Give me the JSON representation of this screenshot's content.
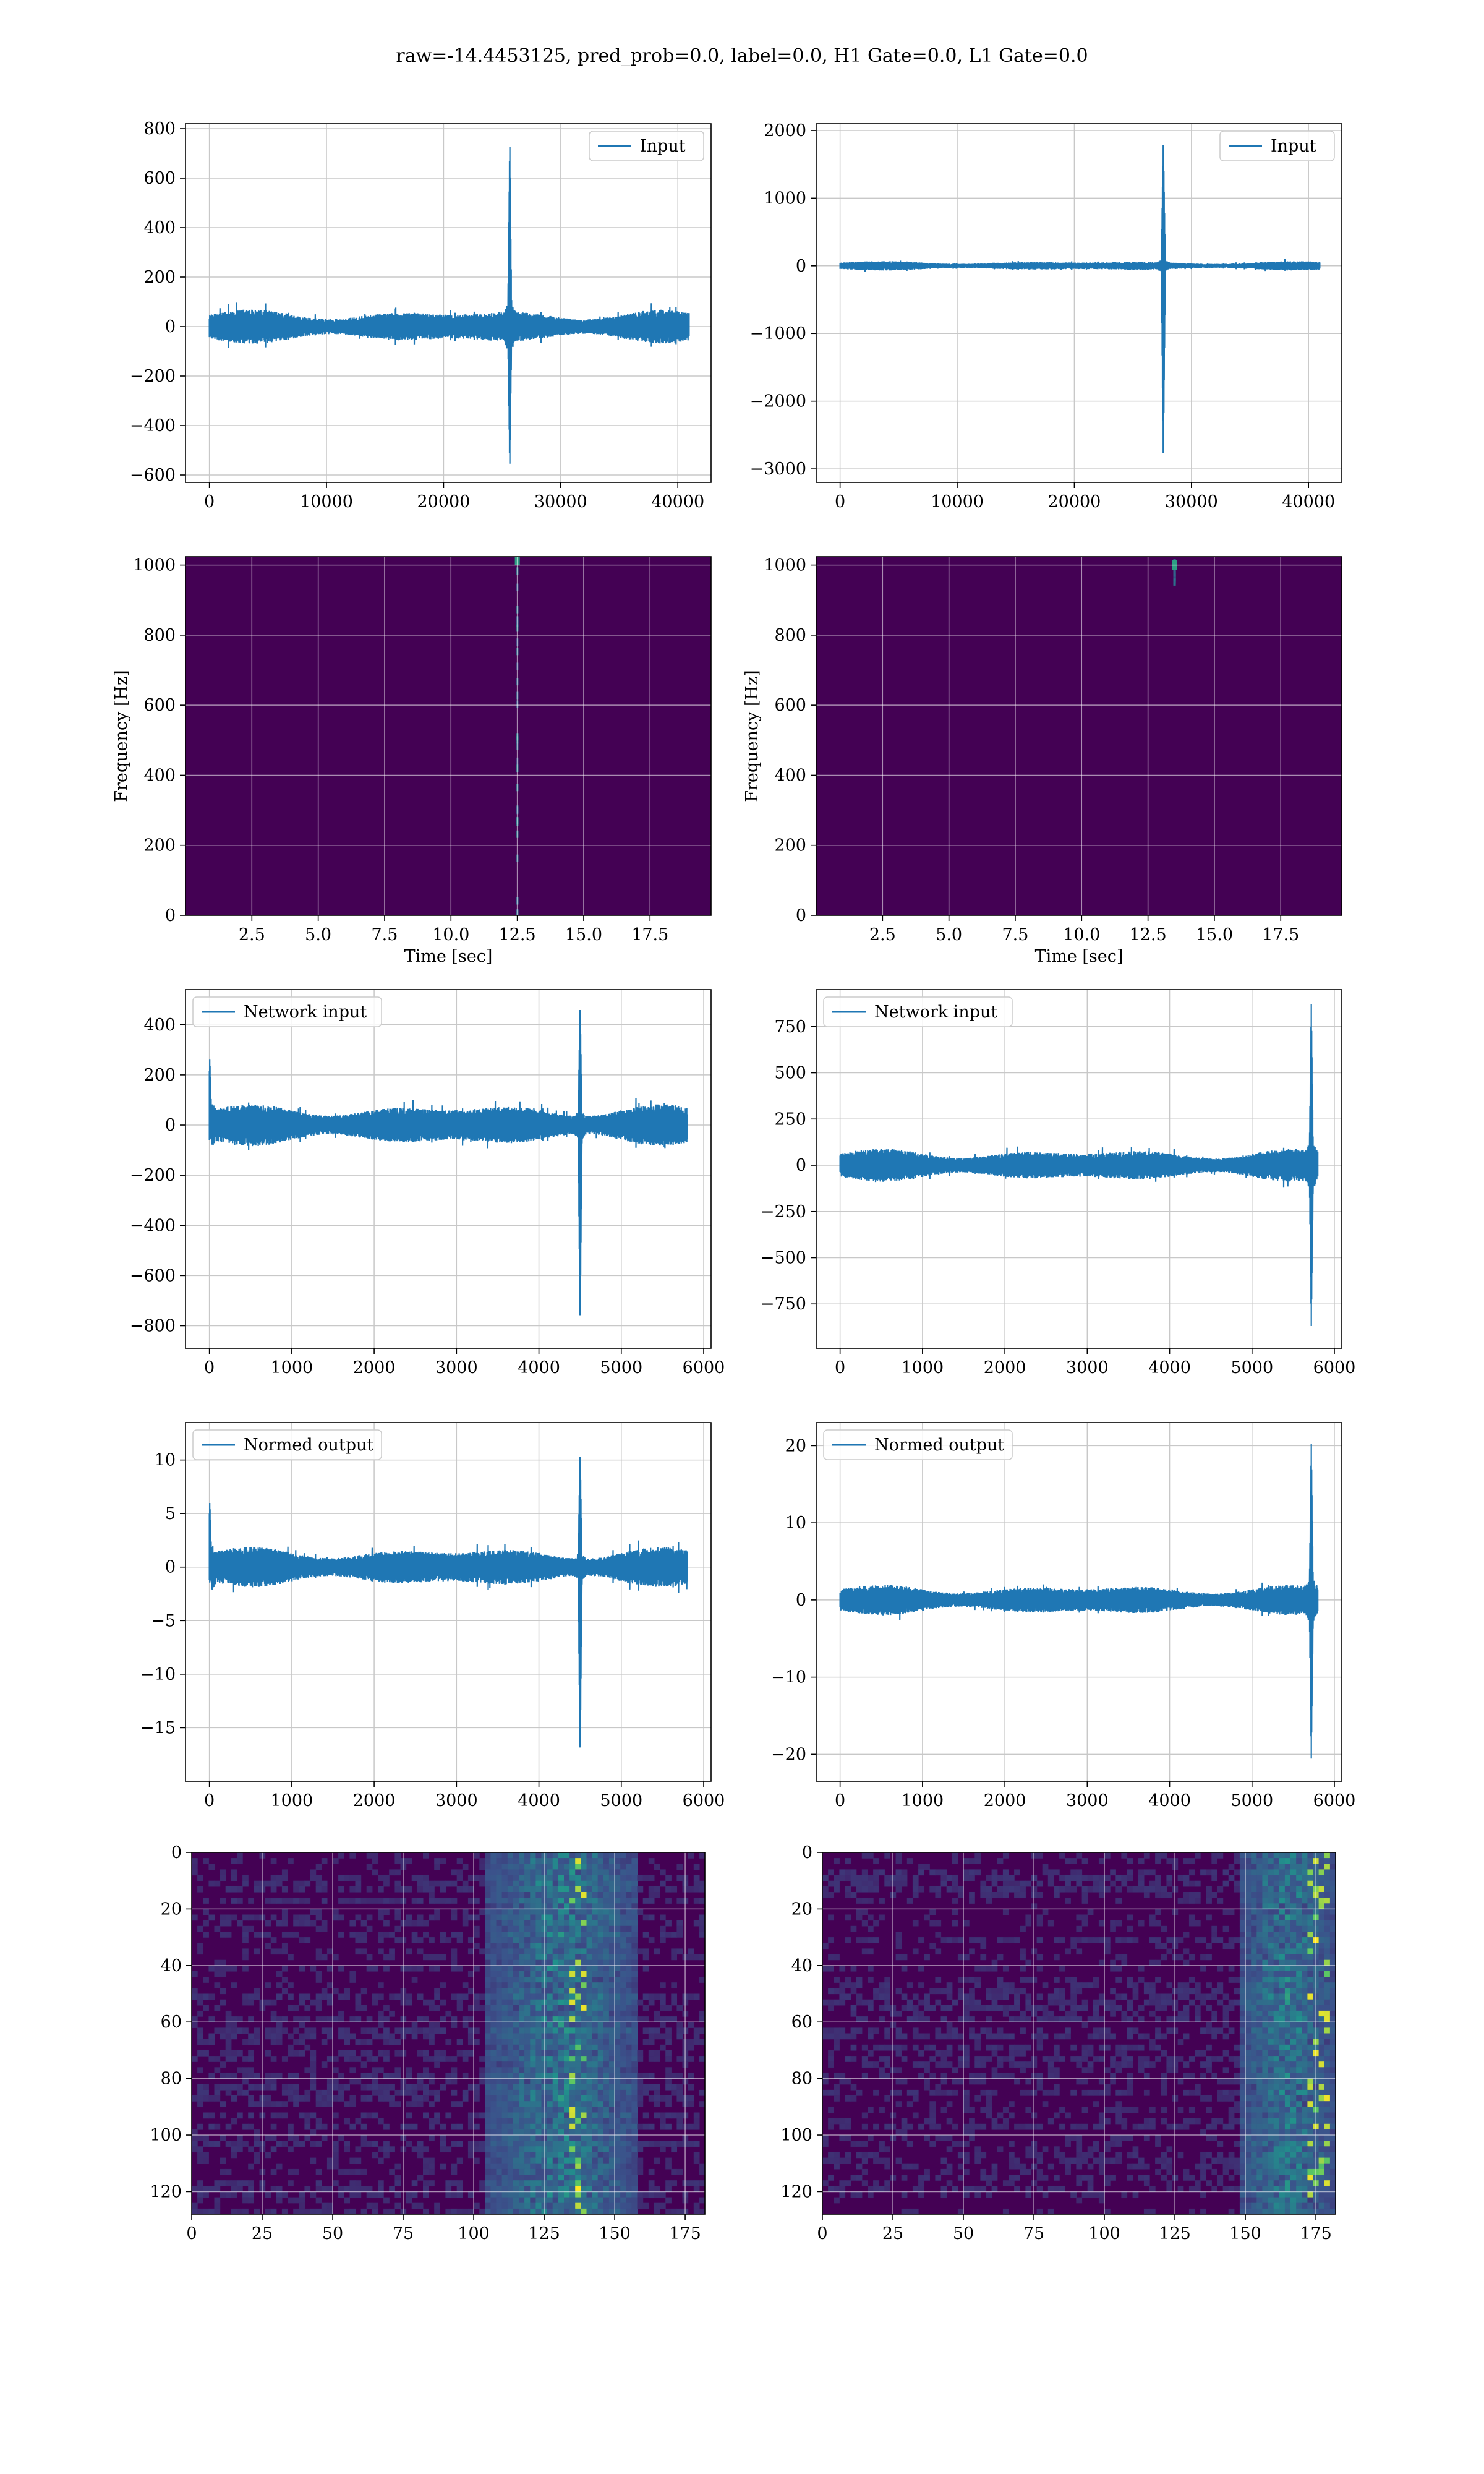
{
  "figure": {
    "suptitle": "raw=-14.4453125, pred_prob=0.0, label=0.0, H1 Gate=0.0, L1 Gate=0.0"
  },
  "colors": {
    "series": "#1f77b4",
    "grid": "#c8c8c8",
    "spectrogram_bg": "#440154",
    "viridis_low": "#440154",
    "viridis_mid": "#31688e",
    "viridis_high": "#35b779",
    "viridis_top": "#fde725"
  },
  "chart_data": [
    {
      "id": "input_left",
      "type": "line",
      "legend": "Input",
      "legend_loc": "upper right",
      "xlim": [
        -2040,
        42840
      ],
      "ylim": [
        -630,
        820
      ],
      "xticks": [
        0,
        10000,
        20000,
        30000,
        40000
      ],
      "yticks": [
        -600,
        -400,
        -200,
        0,
        200,
        400,
        600,
        800
      ],
      "xlabel": "",
      "ylabel": "",
      "series": {
        "n": 40960,
        "noise_amplitude": 70,
        "events": [
          {
            "x": 25650,
            "peak": 760,
            "trough": -580
          }
        ]
      }
    },
    {
      "id": "input_right",
      "type": "line",
      "legend": "Input",
      "legend_loc": "upper right",
      "xlim": [
        -2040,
        42840
      ],
      "ylim": [
        -3200,
        2100
      ],
      "xticks": [
        0,
        10000,
        20000,
        30000,
        40000
      ],
      "yticks": [
        -3000,
        -2000,
        -1000,
        0,
        1000,
        2000
      ],
      "xlabel": "",
      "ylabel": "",
      "series": {
        "n": 40960,
        "noise_amplitude": 70,
        "events": [
          {
            "x": 27600,
            "peak": 1900,
            "trough": -2950
          }
        ]
      }
    },
    {
      "id": "spectrogram_left",
      "type": "heatmap",
      "xlim": [
        0,
        19.8
      ],
      "ylim": [
        0,
        1024
      ],
      "xticks": [
        2.5,
        5.0,
        7.5,
        10.0,
        12.5,
        15.0,
        17.5
      ],
      "xtick_labels": [
        "2.5",
        "5.0",
        "7.5",
        "10.0",
        "12.5",
        "15.0",
        "17.5"
      ],
      "yticks": [
        0,
        200,
        400,
        600,
        800,
        1000
      ],
      "xlabel": "Time [sec]",
      "ylabel": "Frequency [Hz]",
      "features": [
        {
          "t": 12.5,
          "f_min": 0,
          "f_max": 1024
        }
      ]
    },
    {
      "id": "spectrogram_right",
      "type": "heatmap",
      "xlim": [
        0,
        19.8
      ],
      "ylim": [
        0,
        1024
      ],
      "xticks": [
        2.5,
        5.0,
        7.5,
        10.0,
        12.5,
        15.0,
        17.5
      ],
      "xtick_labels": [
        "2.5",
        "5.0",
        "7.5",
        "10.0",
        "12.5",
        "15.0",
        "17.5"
      ],
      "yticks": [
        0,
        200,
        400,
        600,
        800,
        1000
      ],
      "xlabel": "Time [sec]",
      "ylabel": "Frequency [Hz]",
      "features": [
        {
          "t": 13.5,
          "f_min": 950,
          "f_max": 1010
        }
      ]
    },
    {
      "id": "network_left",
      "type": "line",
      "legend": "Network input",
      "legend_loc": "upper left",
      "xlim": [
        -290,
        6090
      ],
      "ylim": [
        -890,
        540
      ],
      "xticks": [
        0,
        1000,
        2000,
        3000,
        4000,
        5000,
        6000
      ],
      "yticks": [
        -800,
        -600,
        -400,
        -200,
        0,
        200,
        400
      ],
      "xlabel": "",
      "ylabel": "",
      "series": {
        "n": 5800,
        "noise_amplitude": 85,
        "events": [
          {
            "x": 4500,
            "peak": 490,
            "trough": -810
          },
          {
            "x": 5,
            "peak": 270,
            "trough": -60
          }
        ]
      }
    },
    {
      "id": "network_right",
      "type": "line",
      "legend": "Network input",
      "legend_loc": "upper left",
      "xlim": [
        -290,
        6090
      ],
      "ylim": [
        -990,
        950
      ],
      "xticks": [
        0,
        1000,
        2000,
        3000,
        4000,
        5000,
        6000
      ],
      "yticks": [
        -750,
        -500,
        -250,
        0,
        250,
        500,
        750
      ],
      "xlabel": "",
      "ylabel": "",
      "series": {
        "n": 5800,
        "noise_amplitude": 90,
        "events": [
          {
            "x": 5720,
            "peak": 880,
            "trough": -880
          }
        ]
      }
    },
    {
      "id": "normed_left",
      "type": "line",
      "legend": "Normed output",
      "legend_loc": "upper left",
      "xlim": [
        -290,
        6090
      ],
      "ylim": [
        -20,
        13.5
      ],
      "xticks": [
        0,
        1000,
        2000,
        3000,
        4000,
        5000,
        6000
      ],
      "yticks": [
        -15,
        -10,
        -5,
        0,
        5,
        10
      ],
      "xlabel": "",
      "ylabel": "",
      "series": {
        "n": 5800,
        "noise_amplitude": 1.9,
        "events": [
          {
            "x": 4500,
            "peak": 11,
            "trough": -18
          },
          {
            "x": 5,
            "peak": 6.2,
            "trough": -1.5
          }
        ]
      }
    },
    {
      "id": "normed_right",
      "type": "line",
      "legend": "Normed output",
      "legend_loc": "upper left",
      "xlim": [
        -290,
        6090
      ],
      "ylim": [
        -23.5,
        23
      ],
      "xticks": [
        0,
        1000,
        2000,
        3000,
        4000,
        5000,
        6000
      ],
      "yticks": [
        -20,
        -10,
        0,
        10,
        20
      ],
      "xlabel": "",
      "ylabel": "",
      "series": {
        "n": 5800,
        "noise_amplitude": 2.0,
        "events": [
          {
            "x": 5720,
            "peak": 20.5,
            "trough": -20.8
          }
        ]
      }
    },
    {
      "id": "qtransform_left",
      "type": "heatmap",
      "xlim": [
        0,
        182
      ],
      "ylim": [
        128,
        0
      ],
      "xticks": [
        0,
        25,
        50,
        75,
        100,
        125,
        150,
        175
      ],
      "yticks": [
        0,
        20,
        40,
        60,
        80,
        100,
        120
      ],
      "xlabel": "",
      "ylabel": "",
      "features": [
        {
          "x_from": 105,
          "x_to": 158,
          "hot_x": 137
        }
      ]
    },
    {
      "id": "qtransform_right",
      "type": "heatmap",
      "xlim": [
        0,
        182
      ],
      "ylim": [
        128,
        0
      ],
      "xticks": [
        0,
        25,
        50,
        75,
        100,
        125,
        150,
        175
      ],
      "yticks": [
        0,
        20,
        40,
        60,
        80,
        100,
        120
      ],
      "xlabel": "",
      "ylabel": "",
      "features": [
        {
          "x_from": 148,
          "x_to": 182,
          "hot_x": 176
        }
      ]
    }
  ]
}
